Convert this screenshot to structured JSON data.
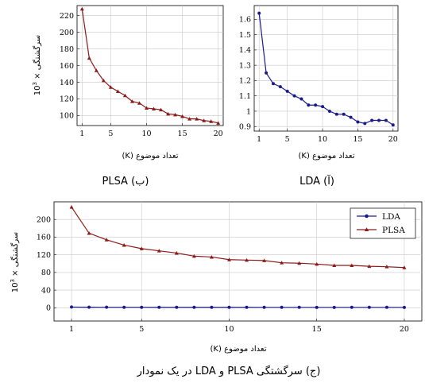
{
  "chart_data": [
    {
      "id": "plsa",
      "type": "line",
      "title": "PLSA (ب)",
      "xlabel": "تعداد موضوع (K)",
      "ylabel": "سرگشتگی × 10^3",
      "xlim": [
        0.3,
        20.7
      ],
      "ylim": [
        88,
        232
      ],
      "xticks": [
        1,
        5,
        10,
        15,
        20
      ],
      "yticks": [
        100,
        120,
        140,
        160,
        180,
        200,
        220
      ],
      "grid": true,
      "series": [
        {
          "color": "#8b1a1a",
          "marker": "triangle",
          "x": [
            1,
            2,
            3,
            4,
            5,
            6,
            7,
            8,
            9,
            10,
            11,
            12,
            13,
            14,
            15,
            16,
            17,
            18,
            19,
            20
          ],
          "y": [
            228,
            169,
            154,
            142,
            134,
            129,
            124,
            117,
            115,
            109,
            108,
            107,
            102,
            101,
            99,
            96,
            96,
            94,
            93,
            91
          ]
        }
      ]
    },
    {
      "id": "lda",
      "type": "line",
      "title": "LDA (آ)",
      "xlabel": "تعداد موضوع (K)",
      "ylabel": "",
      "xlim": [
        0.3,
        20.7
      ],
      "ylim": [
        0.87,
        1.69
      ],
      "xticks": [
        1,
        5,
        10,
        15,
        20
      ],
      "yticks": [
        0.9,
        1,
        1.1,
        1.2,
        1.3,
        1.4,
        1.5,
        1.6
      ],
      "grid": true,
      "series": [
        {
          "color": "#1a1a8b",
          "marker": "circle",
          "x": [
            1,
            2,
            3,
            4,
            5,
            6,
            7,
            8,
            9,
            10,
            11,
            12,
            13,
            14,
            15,
            16,
            17,
            18,
            19,
            20
          ],
          "y": [
            1.64,
            1.25,
            1.18,
            1.16,
            1.13,
            1.1,
            1.08,
            1.04,
            1.04,
            1.03,
            1,
            0.98,
            0.98,
            0.96,
            0.93,
            0.92,
            0.94,
            0.94,
            0.94,
            0.91
          ]
        }
      ]
    },
    {
      "id": "combined",
      "type": "line",
      "title": "(ج) سرگشتگی PLSA و LDA در یک نمودار",
      "xlabel": "تعداد موضوع (K)",
      "ylabel": "سرگشتگی × 10^3",
      "xlim": [
        0,
        21
      ],
      "ylim": [
        -30,
        240
      ],
      "xticks": [
        1,
        5,
        10,
        15,
        20
      ],
      "yticks": [
        0,
        40,
        80,
        120,
        160,
        200
      ],
      "grid": true,
      "legend_position": "top-right",
      "series": [
        {
          "name": "LDA",
          "color": "#1a1a8b",
          "marker": "circle",
          "x": [
            1,
            2,
            3,
            4,
            5,
            6,
            7,
            8,
            9,
            10,
            11,
            12,
            13,
            14,
            15,
            16,
            17,
            18,
            19,
            20
          ],
          "y": [
            1.64,
            1.25,
            1.18,
            1.16,
            1.13,
            1.1,
            1.08,
            1.04,
            1.04,
            1.03,
            1,
            0.98,
            0.98,
            0.96,
            0.93,
            0.92,
            0.94,
            0.94,
            0.94,
            0.91
          ]
        },
        {
          "name": "PLSA",
          "color": "#8b1a1a",
          "marker": "triangle",
          "x": [
            1,
            2,
            3,
            4,
            5,
            6,
            7,
            8,
            9,
            10,
            11,
            12,
            13,
            14,
            15,
            16,
            17,
            18,
            19,
            20
          ],
          "y": [
            228,
            169,
            154,
            142,
            134,
            129,
            124,
            117,
            115,
            109,
            108,
            107,
            102,
            101,
            99,
            96,
            96,
            94,
            93,
            91
          ]
        }
      ]
    }
  ]
}
